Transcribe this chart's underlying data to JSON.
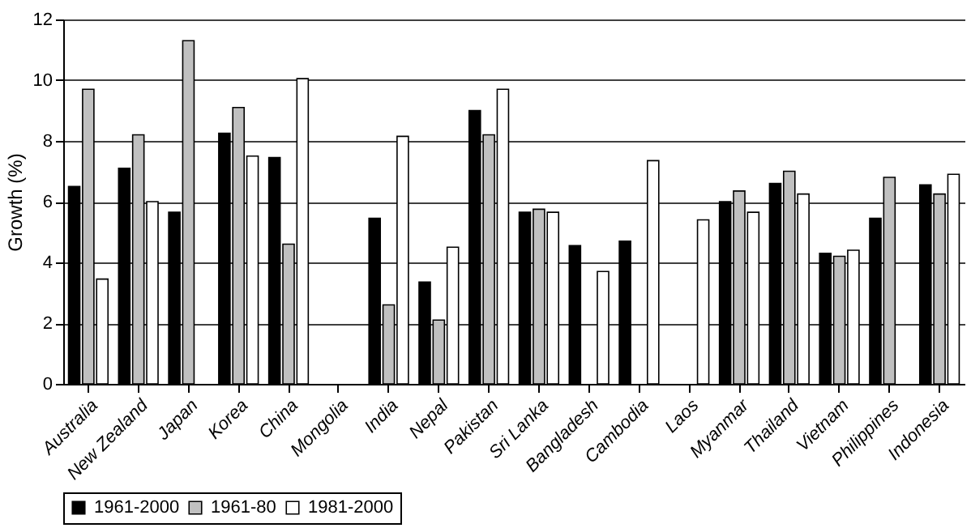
{
  "chart_data": {
    "type": "bar",
    "ylabel": "Growth (%)",
    "categories": [
      "Australia",
      "New Zealand",
      "Japan",
      "Korea",
      "China",
      "Mongolia",
      "India",
      "Nepal",
      "Pakistan",
      "Sri Lanka",
      "Bangladesh",
      "Cambodia",
      "Laos",
      "Myanmar",
      "Thailand",
      "Vietnam",
      "Philippines",
      "Indonesia"
    ],
    "series": [
      {
        "name": "1961-2000",
        "color": "#000000",
        "values": [
          6.5,
          7.1,
          5.65,
          8.25,
          7.45,
          null,
          5.45,
          3.35,
          9.0,
          5.65,
          4.55,
          4.7,
          null,
          6.0,
          6.6,
          4.3,
          5.45,
          6.55
        ]
      },
      {
        "name": "1961-80",
        "color": "#c0c0c0",
        "values": [
          9.7,
          8.2,
          11.3,
          9.1,
          4.6,
          null,
          2.6,
          2.1,
          8.2,
          5.75,
          null,
          null,
          null,
          6.35,
          7.0,
          4.2,
          6.8,
          6.25
        ]
      },
      {
        "name": "1981-2000",
        "color": "#ffffff",
        "values": [
          3.45,
          6.0,
          null,
          7.5,
          10.05,
          null,
          8.15,
          4.5,
          9.7,
          5.65,
          3.7,
          7.35,
          5.4,
          5.65,
          6.25,
          4.4,
          null,
          6.9
        ]
      }
    ],
    "ylim": [
      0,
      12
    ],
    "yticks": [
      0,
      2,
      4,
      6,
      8,
      10,
      12
    ],
    "grid": "y",
    "legend": "bottom"
  }
}
